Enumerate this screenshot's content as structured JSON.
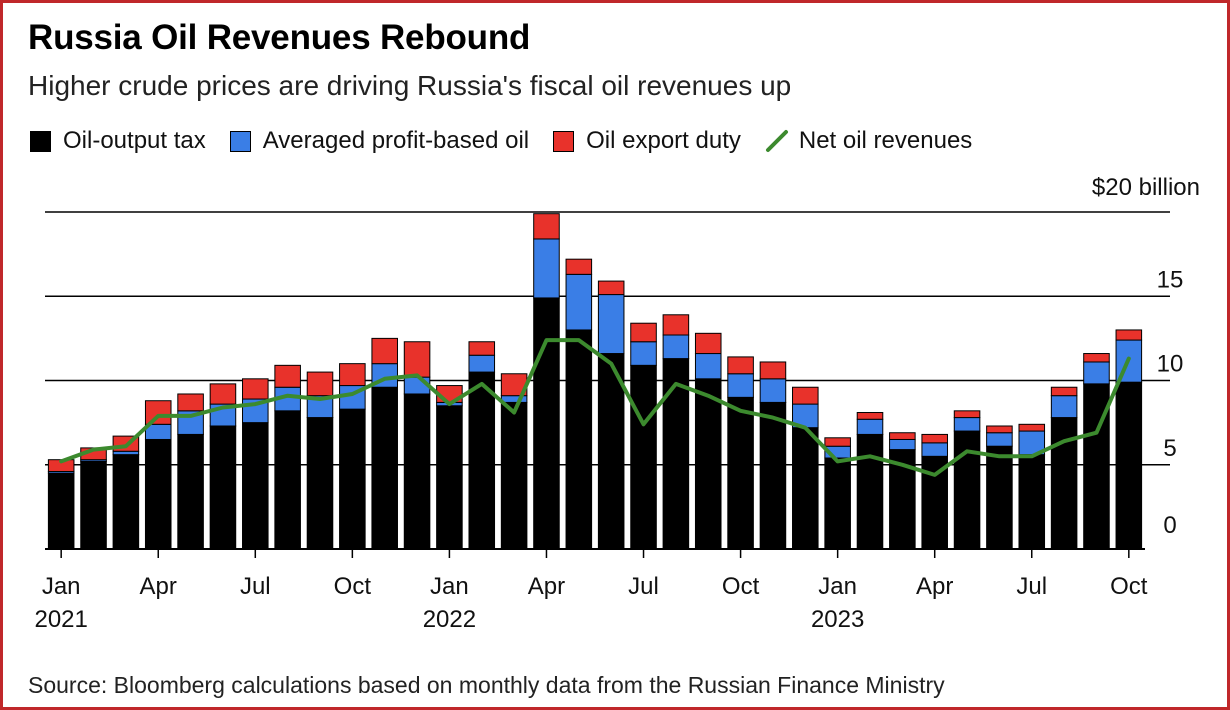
{
  "title": "Russia Oil Revenues Rebound",
  "subtitle": "Higher crude prices are driving Russia's fiscal oil revenues up",
  "source": "Source: Bloomberg calculations based on monthly data from the Russian Finance Ministry",
  "legend": {
    "oil_output_tax": "Oil-output tax",
    "profit_based": "Averaged profit-based oil",
    "export_duty": "Oil export duty",
    "net": "Net oil revenues"
  },
  "colors": {
    "oil_output_tax": "#000000",
    "profit_based": "#3a7ee6",
    "export_duty": "#e8322b",
    "net": "#3c8a2e",
    "gridline": "#000000"
  },
  "chart_data": {
    "type": "bar",
    "stacked": true,
    "x": [
      "Jan 2021",
      "Feb 2021",
      "Mar 2021",
      "Apr 2021",
      "May 2021",
      "Jun 2021",
      "Jul 2021",
      "Aug 2021",
      "Sep 2021",
      "Oct 2021",
      "Nov 2021",
      "Dec 2021",
      "Jan 2022",
      "Feb 2022",
      "Mar 2022",
      "Apr 2022",
      "May 2022",
      "Jun 2022",
      "Jul 2022",
      "Aug 2022",
      "Sep 2022",
      "Oct 2022",
      "Nov 2022",
      "Dec 2022",
      "Jan 2023",
      "Feb 2023",
      "Mar 2023",
      "Apr 2023",
      "May 2023",
      "Jun 2023",
      "Jul 2023",
      "Aug 2023",
      "Sep 2023",
      "Oct 2023"
    ],
    "series": [
      {
        "name": "Oil-output tax",
        "key": "oil_output_tax",
        "kind": "bar",
        "values": [
          4.5,
          5.2,
          5.6,
          6.5,
          6.8,
          7.3,
          7.5,
          8.2,
          7.8,
          8.3,
          9.6,
          9.2,
          8.5,
          10.5,
          8.7,
          14.9,
          13.0,
          11.6,
          10.9,
          11.3,
          10.1,
          9.0,
          8.7,
          7.2,
          5.4,
          6.8,
          5.9,
          5.5,
          7.0,
          6.1,
          5.6,
          7.8,
          9.8,
          9.9
        ]
      },
      {
        "name": "Averaged profit-based oil",
        "key": "profit_based",
        "kind": "bar",
        "values": [
          0.1,
          0.1,
          0.2,
          0.9,
          1.4,
          1.3,
          1.4,
          1.4,
          1.3,
          1.4,
          1.4,
          1.0,
          0.2,
          1.0,
          0.4,
          3.5,
          3.3,
          3.5,
          1.4,
          1.4,
          1.5,
          1.4,
          1.4,
          1.4,
          0.7,
          0.9,
          0.6,
          0.8,
          0.8,
          0.8,
          1.4,
          1.3,
          1.3,
          2.5
        ]
      },
      {
        "name": "Oil export duty",
        "key": "export_duty",
        "kind": "bar",
        "values": [
          0.7,
          0.7,
          0.9,
          1.4,
          1.0,
          1.2,
          1.2,
          1.3,
          1.4,
          1.3,
          1.5,
          2.1,
          1.0,
          0.8,
          1.3,
          1.5,
          0.9,
          0.8,
          1.1,
          1.2,
          1.2,
          1.0,
          1.0,
          1.0,
          0.5,
          0.4,
          0.4,
          0.5,
          0.4,
          0.4,
          0.4,
          0.5,
          0.5,
          0.6
        ]
      },
      {
        "name": "Net oil revenues",
        "key": "net",
        "kind": "line",
        "values": [
          5.2,
          5.9,
          6.1,
          7.9,
          7.9,
          8.4,
          8.6,
          9.1,
          8.9,
          9.2,
          10.1,
          10.3,
          8.6,
          9.8,
          8.1,
          12.4,
          12.4,
          11.0,
          7.4,
          9.8,
          9.1,
          8.2,
          7.8,
          7.2,
          5.2,
          5.5,
          5.0,
          4.4,
          5.8,
          5.5,
          5.5,
          6.4,
          6.9,
          11.3
        ]
      }
    ],
    "xtick_labels": [
      {
        "index": 0,
        "month": "Jan",
        "year": "2021"
      },
      {
        "index": 3,
        "month": "Apr",
        "year": ""
      },
      {
        "index": 6,
        "month": "Jul",
        "year": ""
      },
      {
        "index": 9,
        "month": "Oct",
        "year": ""
      },
      {
        "index": 12,
        "month": "Jan",
        "year": "2022"
      },
      {
        "index": 15,
        "month": "Apr",
        "year": ""
      },
      {
        "index": 18,
        "month": "Jul",
        "year": ""
      },
      {
        "index": 21,
        "month": "Oct",
        "year": ""
      },
      {
        "index": 24,
        "month": "Jan",
        "year": "2023"
      },
      {
        "index": 27,
        "month": "Apr",
        "year": ""
      },
      {
        "index": 30,
        "month": "Jul",
        "year": ""
      },
      {
        "index": 33,
        "month": "Oct",
        "year": ""
      }
    ],
    "yticks": [
      {
        "value": 0,
        "label": "0"
      },
      {
        "value": 5,
        "label": "5"
      },
      {
        "value": 10,
        "label": "10"
      },
      {
        "value": 15,
        "label": "15"
      },
      {
        "value": 20,
        "label": "$20 billion"
      }
    ],
    "ylim": [
      0,
      20
    ],
    "ylabel": "",
    "xlabel": "",
    "y_axis_position": "right",
    "grid": true,
    "legend_position": "top-left"
  }
}
